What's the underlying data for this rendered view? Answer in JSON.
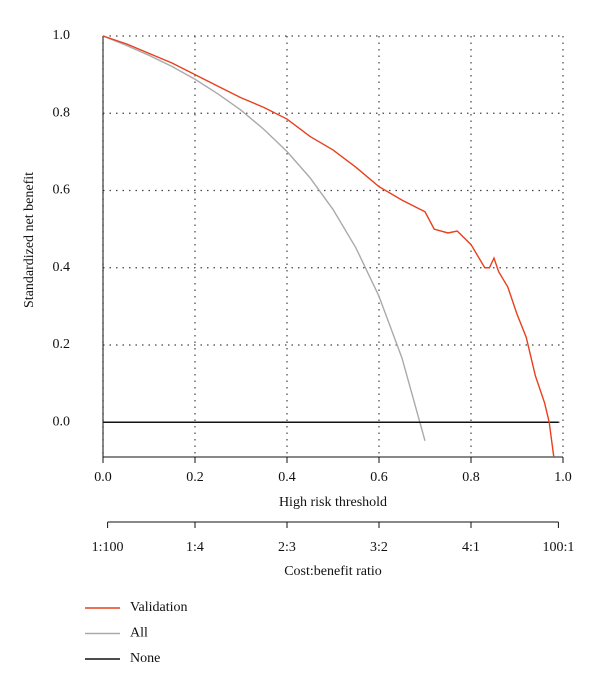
{
  "chart_data": {
    "type": "line",
    "xlabel": "High risk threshold",
    "ylabel": "Standardized net benefit",
    "x2label": "Cost:benefit ratio",
    "xlim": [
      0,
      1
    ],
    "ylim": [
      -0.09,
      1
    ],
    "xticks": [
      {
        "value": 0,
        "label": "0.0"
      },
      0.2,
      0.4,
      0.6,
      0.8,
      {
        "value": 1,
        "label": "1.0"
      }
    ],
    "yticks": [
      {
        "value": 0,
        "label": "0.0"
      },
      0.2,
      0.4,
      0.6,
      0.8,
      {
        "value": 1,
        "label": "1.0"
      }
    ],
    "x2ticks": [
      {
        "value": 0.01,
        "label": "1:100"
      },
      {
        "value": 0.2,
        "label": "1:4"
      },
      {
        "value": 0.4,
        "label": "2:3"
      },
      {
        "value": 0.6,
        "label": "3:2"
      },
      {
        "value": 0.8,
        "label": "4:1"
      },
      {
        "value": 0.99,
        "label": "100:1"
      }
    ],
    "grid": true,
    "legend": "bottom-left",
    "series": [
      {
        "name": "Validation",
        "color": "#e8401c",
        "x": [
          0,
          0.05,
          0.1,
          0.15,
          0.2,
          0.25,
          0.3,
          0.35,
          0.4,
          0.45,
          0.5,
          0.55,
          0.6,
          0.65,
          0.7,
          0.72,
          0.75,
          0.77,
          0.8,
          0.83,
          0.84,
          0.85,
          0.86,
          0.88,
          0.9,
          0.92,
          0.94,
          0.96,
          0.97,
          0.98
        ],
        "values": [
          1.0,
          0.98,
          0.955,
          0.93,
          0.9,
          0.87,
          0.84,
          0.815,
          0.785,
          0.74,
          0.705,
          0.66,
          0.61,
          0.575,
          0.545,
          0.5,
          0.49,
          0.495,
          0.46,
          0.4,
          0.4,
          0.425,
          0.39,
          0.35,
          0.28,
          0.22,
          0.12,
          0.05,
          0.0,
          -0.09
        ]
      },
      {
        "name": "All",
        "color": "#aaaaaa",
        "x": [
          0,
          0.05,
          0.1,
          0.15,
          0.2,
          0.25,
          0.3,
          0.35,
          0.4,
          0.45,
          0.5,
          0.55,
          0.6,
          0.65,
          0.7
        ],
        "values": [
          1.0,
          0.976,
          0.95,
          0.921,
          0.888,
          0.85,
          0.808,
          0.758,
          0.701,
          0.633,
          0.551,
          0.451,
          0.326,
          0.166,
          -0.048
        ]
      },
      {
        "name": "None",
        "color": "#111111",
        "x": [
          0,
          0.99
        ],
        "values": [
          0,
          0
        ]
      }
    ]
  }
}
